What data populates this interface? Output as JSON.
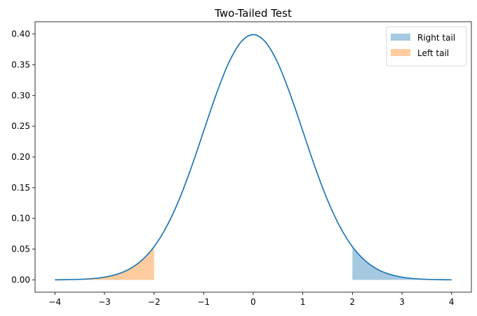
{
  "chart_data": {
    "type": "area",
    "title": "Two-Tailed Test",
    "xlabel": "",
    "ylabel": "",
    "xlim": [
      -4.4,
      4.4
    ],
    "ylim": [
      -0.02,
      0.42
    ],
    "xticks": [
      -4,
      -3,
      -2,
      -1,
      0,
      1,
      2,
      3,
      4
    ],
    "xtick_labels": [
      "−4",
      "−3",
      "−2",
      "−1",
      "0",
      "1",
      "2",
      "3",
      "4"
    ],
    "yticks": [
      0.0,
      0.05,
      0.1,
      0.15,
      0.2,
      0.25,
      0.3,
      0.35,
      0.4
    ],
    "ytick_labels": [
      "0.00",
      "0.05",
      "0.10",
      "0.15",
      "0.20",
      "0.25",
      "0.30",
      "0.35",
      "0.40"
    ],
    "grid": false,
    "legend_position": "top-right",
    "curve": {
      "x": [
        -4.0,
        -3.75,
        -3.5,
        -3.25,
        -3.0,
        -2.75,
        -2.5,
        -2.25,
        -2.0,
        -1.75,
        -1.5,
        -1.25,
        -1.0,
        -0.75,
        -0.5,
        -0.25,
        0.0,
        0.25,
        0.5,
        0.75,
        1.0,
        1.25,
        1.5,
        1.75,
        2.0,
        2.25,
        2.5,
        2.75,
        3.0,
        3.25,
        3.5,
        3.75,
        4.0
      ],
      "y": [
        0.0001,
        0.0004,
        0.0009,
        0.002,
        0.0044,
        0.0091,
        0.0175,
        0.0317,
        0.054,
        0.0863,
        0.1295,
        0.1826,
        0.242,
        0.3011,
        0.3521,
        0.3867,
        0.3989,
        0.3867,
        0.3521,
        0.3011,
        0.242,
        0.1826,
        0.1295,
        0.0863,
        0.054,
        0.0317,
        0.0175,
        0.0091,
        0.0044,
        0.002,
        0.0009,
        0.0004,
        0.0001
      ],
      "color": "#1f77b4"
    },
    "series": [
      {
        "name": "Right tail",
        "color": "#1f77b4",
        "x": [
          2.0,
          2.25,
          2.5,
          2.75,
          3.0,
          3.25,
          3.5,
          3.75,
          4.0
        ],
        "y": [
          0.054,
          0.0317,
          0.0175,
          0.0091,
          0.0044,
          0.002,
          0.0009,
          0.0004,
          0.0001
        ]
      },
      {
        "name": "Left tail",
        "color": "#ff7f0e",
        "x": [
          -4.0,
          -3.75,
          -3.5,
          -3.25,
          -3.0,
          -2.75,
          -2.5,
          -2.25,
          -2.0
        ],
        "y": [
          0.0001,
          0.0004,
          0.0009,
          0.002,
          0.0044,
          0.0091,
          0.0175,
          0.0317,
          0.054
        ]
      }
    ],
    "fill_opacity": 0.4
  }
}
